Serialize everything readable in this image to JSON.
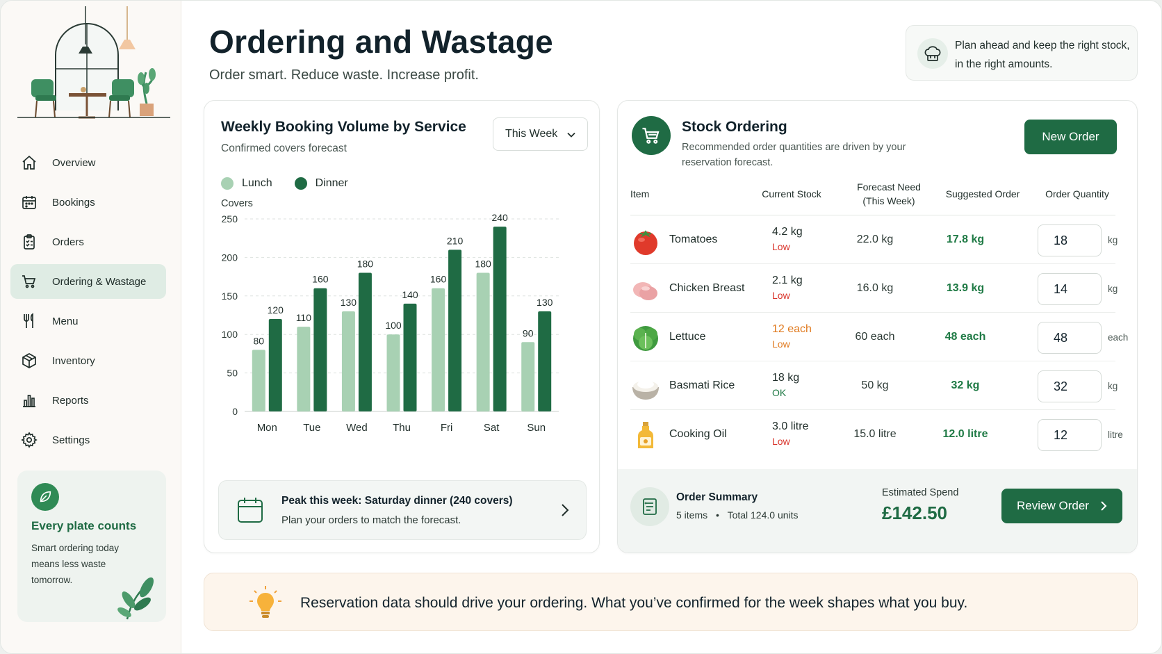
{
  "page": {
    "title": "Ordering and Wastage",
    "subtitle": "Order smart. Reduce waste. Increase profit.",
    "tip_text": "Plan ahead and keep the right stock, in the right amounts."
  },
  "sidebar": {
    "items": [
      {
        "label": "Overview",
        "icon": "home-icon"
      },
      {
        "label": "Bookings",
        "icon": "calendar-icon"
      },
      {
        "label": "Orders",
        "icon": "clipboard-icon"
      },
      {
        "label": "Ordering & Wastage",
        "icon": "cart-icon",
        "active": true
      },
      {
        "label": "Menu",
        "icon": "utensils-icon"
      },
      {
        "label": "Inventory",
        "icon": "box-icon"
      },
      {
        "label": "Reports",
        "icon": "bar-chart-icon"
      },
      {
        "label": "Settings",
        "icon": "gear-icon"
      }
    ],
    "promo": {
      "title": "Every plate counts",
      "text": "Smart ordering today means less waste tomorrow."
    }
  },
  "chart_card": {
    "title": "Weekly Booking Volume by Service",
    "subtitle": "Confirmed covers forecast",
    "dropdown_value": "This Week",
    "peak_title": "Peak this week: Saturday dinner (240 covers)",
    "peak_text": "Plan your orders to match the forecast."
  },
  "chart_data": {
    "type": "bar",
    "ylabel": "Covers",
    "ylim": [
      0,
      250
    ],
    "yticks": [
      0,
      50,
      100,
      150,
      200,
      250
    ],
    "categories": [
      "Mon",
      "Tue",
      "Wed",
      "Thu",
      "Fri",
      "Sat",
      "Sun"
    ],
    "series": [
      {
        "name": "Lunch",
        "color": "#a8d1b3",
        "values": [
          80,
          110,
          130,
          100,
          160,
          180,
          90
        ]
      },
      {
        "name": "Dinner",
        "color": "#1f6b44",
        "values": [
          120,
          160,
          180,
          140,
          210,
          240,
          130
        ]
      }
    ],
    "grid": true,
    "legend": "top-left"
  },
  "stock_card": {
    "title": "Stock Ordering",
    "subtitle": "Recommended order quantities are driven by your reservation forecast.",
    "new_order_label": "New Order",
    "columns": {
      "item": "Item",
      "current": "Current Stock",
      "forecast": "Forecast Need (This Week)",
      "suggested": "Suggested Order",
      "quantity": "Order Quantity"
    },
    "rows": [
      {
        "name": "Tomatoes",
        "icon": "tomato-icon",
        "current": "4.2 kg",
        "status": "Low",
        "forecast": "22.0 kg",
        "suggested": "17.8 kg",
        "quantity": "18",
        "unit": "kg"
      },
      {
        "name": "Chicken Breast",
        "icon": "chicken-icon",
        "current": "2.1 kg",
        "status": "Low",
        "forecast": "16.0 kg",
        "suggested": "13.9 kg",
        "quantity": "14",
        "unit": "kg"
      },
      {
        "name": "Lettuce",
        "icon": "lettuce-icon",
        "current": "12 each",
        "status": "Low",
        "forecast": "60 each",
        "suggested": "48 each",
        "quantity": "48",
        "unit": "each"
      },
      {
        "name": "Basmati Rice",
        "icon": "rice-icon",
        "current": "18 kg",
        "status": "OK",
        "forecast": "50 kg",
        "suggested": "32 kg",
        "quantity": "32",
        "unit": "kg"
      },
      {
        "name": "Cooking Oil",
        "icon": "oil-icon",
        "current": "3.0 litre",
        "status": "Low",
        "forecast": "15.0 litre",
        "suggested": "12.0 litre",
        "quantity": "12",
        "unit": "litre"
      }
    ],
    "summary": {
      "title": "Order Summary",
      "items": "5 items",
      "total": "Total 124.0 units",
      "spend_label": "Estimated Spend",
      "spend_value": "£142.50",
      "review_label": "Review Order"
    }
  },
  "banner": {
    "text": "Reservation data should drive your ordering. What you’ve confirmed for the week shapes what you buy."
  },
  "colors": {
    "brand": "#1f6b44",
    "lunch": "#a8d1b3",
    "low": "#d9342b",
    "ok": "#1f7a45"
  }
}
